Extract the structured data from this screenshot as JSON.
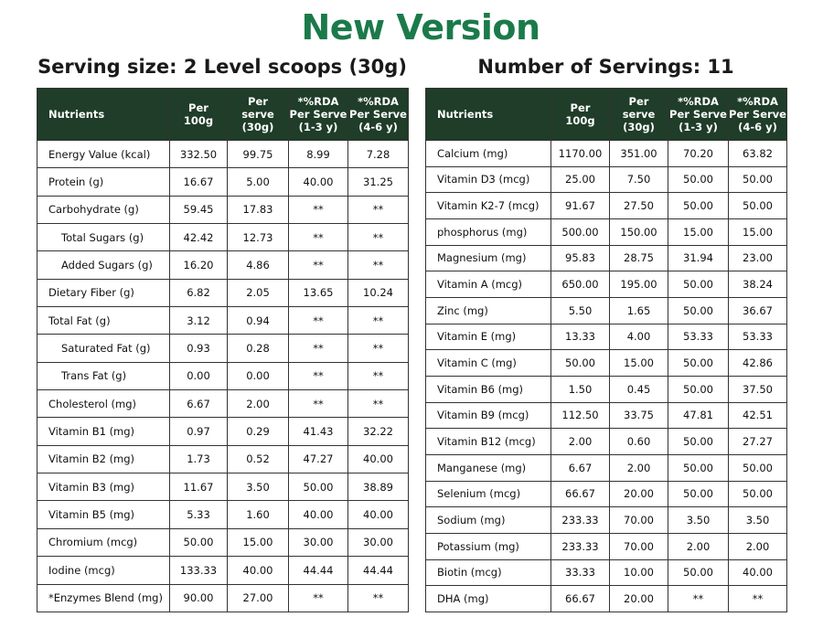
{
  "title": "New Version",
  "left": {
    "heading": "Serving size: 2 Level scoops (30g)",
    "columns": [
      "Nutrients",
      "Per\n100g",
      "Per\nserve\n(30g)",
      "*%RDA\nPer Serve\n(1-3 y)",
      "*%RDA\nPer Serve\n(4-6 y)"
    ],
    "rows": [
      [
        "Energy Value (kcal)",
        "332.50",
        "99.75",
        "8.99",
        "7.28"
      ],
      [
        "Protein (g)",
        "16.67",
        "5.00",
        "40.00",
        "31.25"
      ],
      [
        "Carbohydrate (g)",
        "59.45",
        "17.83",
        "**",
        "**"
      ],
      [
        "Total Sugars (g)",
        "42.42",
        "12.73",
        "**",
        "**"
      ],
      [
        "Added Sugars (g)",
        "16.20",
        "4.86",
        "**",
        "**"
      ],
      [
        "Dietary Fiber (g)",
        "6.82",
        "2.05",
        "13.65",
        "10.24"
      ],
      [
        "Total Fat (g)",
        "3.12",
        "0.94",
        "**",
        "**"
      ],
      [
        "Saturated Fat (g)",
        "0.93",
        "0.28",
        "**",
        "**"
      ],
      [
        "Trans Fat (g)",
        "0.00",
        "0.00",
        "**",
        "**"
      ],
      [
        "Cholesterol (mg)",
        "6.67",
        "2.00",
        "**",
        "**"
      ],
      [
        "Vitamin B1 (mg)",
        "0.97",
        "0.29",
        "41.43",
        "32.22"
      ],
      [
        "Vitamin B2 (mg)",
        "1.73",
        "0.52",
        "47.27",
        "40.00"
      ],
      [
        "Vitamin B3 (mg)",
        "11.67",
        "3.50",
        "50.00",
        "38.89"
      ],
      [
        "Vitamin B5 (mg)",
        "5.33",
        "1.60",
        "40.00",
        "40.00"
      ],
      [
        "Chromium (mcg)",
        "50.00",
        "15.00",
        "30.00",
        "30.00"
      ],
      [
        "Iodine (mcg)",
        "133.33",
        "40.00",
        "44.44",
        "44.44"
      ],
      [
        "*Enzymes Blend (mg)",
        "90.00",
        "27.00",
        "**",
        "**"
      ]
    ]
  },
  "right": {
    "heading": "Number of Servings: 11",
    "columns": [
      "Nutrients",
      "Per\n100g",
      "Per\nserve\n(30g)",
      "*%RDA\nPer Serve\n(1-3 y)",
      "*%RDA\nPer Serve\n(4-6 y)"
    ],
    "rows": [
      [
        "Calcium (mg)",
        "1170.00",
        "351.00",
        "70.20",
        "63.82"
      ],
      [
        "Vitamin D3 (mcg)",
        "25.00",
        "7.50",
        "50.00",
        "50.00"
      ],
      [
        "Vitamin K2-7 (mcg)",
        "91.67",
        "27.50",
        "50.00",
        "50.00"
      ],
      [
        "phosphorus (mg)",
        "500.00",
        "150.00",
        "15.00",
        "15.00"
      ],
      [
        "Magnesium (mg)",
        "95.83",
        "28.75",
        "31.94",
        "23.00"
      ],
      [
        "Vitamin A (mcg)",
        "650.00",
        "195.00",
        "50.00",
        "38.24"
      ],
      [
        "Zinc (mg)",
        "5.50",
        "1.65",
        "50.00",
        "36.67"
      ],
      [
        "Vitamin E (mg)",
        "13.33",
        "4.00",
        "53.33",
        "53.33"
      ],
      [
        "Vitamin C (mg)",
        "50.00",
        "15.00",
        "50.00",
        "42.86"
      ],
      [
        "Vitamin B6 (mg)",
        "1.50",
        "0.45",
        "50.00",
        "37.50"
      ],
      [
        "Vitamin B9 (mcg)",
        "112.50",
        "33.75",
        "47.81",
        "42.51"
      ],
      [
        "Vitamin B12 (mcg)",
        "2.00",
        "0.60",
        "50.00",
        "27.27"
      ],
      [
        "Manganese (mg)",
        "6.67",
        "2.00",
        "50.00",
        "50.00"
      ],
      [
        "Selenium (mcg)",
        "66.67",
        "20.00",
        "50.00",
        "50.00"
      ],
      [
        "Sodium (mg)",
        "233.33",
        "70.00",
        "3.50",
        "3.50"
      ],
      [
        "Potassium (mg)",
        "233.33",
        "70.00",
        "2.00",
        "2.00"
      ],
      [
        "Biotin (mcg)",
        "33.33",
        "10.00",
        "50.00",
        "40.00"
      ],
      [
        "DHA (mg)",
        "66.67",
        "20.00",
        "**",
        "**"
      ]
    ]
  }
}
